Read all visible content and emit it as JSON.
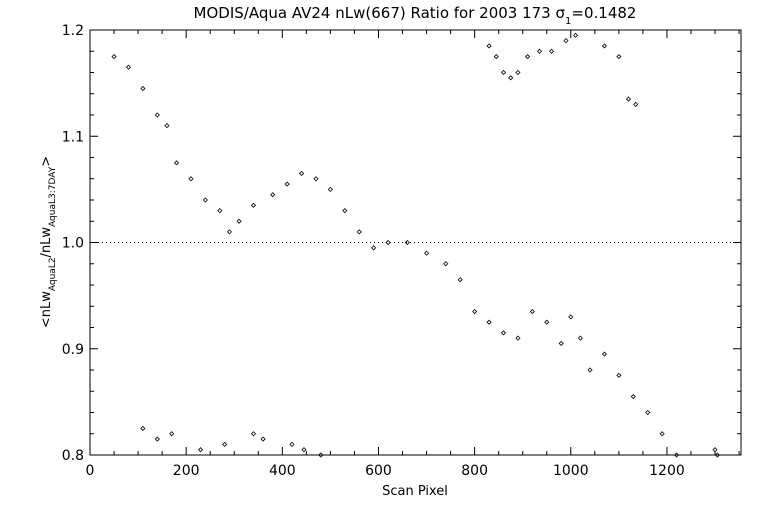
{
  "chart_data": {
    "type": "scatter",
    "title": "MODIS/Aqua AV24 nLw(667) Ratio for 2003 173 σ",
    "title_sub": "1",
    "title_tail": "=0.1482",
    "xlabel": "Scan Pixel",
    "ylabel_parts": [
      "<nLw",
      "AquaL2",
      "/nLw",
      "AquaL3:7DAY",
      ">"
    ],
    "xlim": [
      0,
      1354
    ],
    "ylim": [
      0.8,
      1.2
    ],
    "xticks": [
      0,
      200,
      400,
      600,
      800,
      1000,
      1200
    ],
    "xtick_labels": [
      "0",
      "200",
      "400",
      "600",
      "800",
      "1000",
      "1200"
    ],
    "yticks": [
      0.8,
      0.9,
      1.0,
      1.1,
      1.2
    ],
    "ytick_labels": [
      "0.8",
      "0.9",
      "1.0",
      "1.1",
      "1.2"
    ],
    "reference_line": {
      "y": 1.0,
      "style": "dotted"
    },
    "marker": "diamond",
    "grid": false,
    "trend_points": [
      [
        50,
        1.175
      ],
      [
        80,
        1.165
      ],
      [
        110,
        1.145
      ],
      [
        140,
        1.12
      ],
      [
        160,
        1.11
      ],
      [
        180,
        1.075
      ],
      [
        210,
        1.06
      ],
      [
        240,
        1.04
      ],
      [
        270,
        1.03
      ],
      [
        290,
        1.01
      ],
      [
        310,
        1.02
      ],
      [
        340,
        1.035
      ],
      [
        380,
        1.045
      ],
      [
        410,
        1.055
      ],
      [
        440,
        1.065
      ],
      [
        470,
        1.06
      ],
      [
        500,
        1.05
      ],
      [
        530,
        1.03
      ],
      [
        560,
        1.01
      ],
      [
        590,
        0.995
      ],
      [
        620,
        1.0
      ],
      [
        660,
        1.0
      ],
      [
        700,
        0.99
      ],
      [
        740,
        0.98
      ],
      [
        770,
        0.965
      ],
      [
        800,
        0.935
      ],
      [
        830,
        0.925
      ],
      [
        860,
        0.915
      ],
      [
        890,
        0.91
      ],
      [
        920,
        0.935
      ],
      [
        950,
        0.925
      ],
      [
        980,
        0.905
      ],
      [
        1000,
        0.93
      ],
      [
        1020,
        0.91
      ],
      [
        1040,
        0.88
      ],
      [
        1070,
        0.895
      ],
      [
        1100,
        0.875
      ],
      [
        1130,
        0.855
      ],
      [
        1160,
        0.84
      ],
      [
        1190,
        0.82
      ],
      [
        1220,
        0.8
      ]
    ],
    "outlier_points": [
      [
        830,
        1.185
      ],
      [
        845,
        1.175
      ],
      [
        860,
        1.16
      ],
      [
        875,
        1.155
      ],
      [
        890,
        1.16
      ],
      [
        910,
        1.175
      ],
      [
        935,
        1.18
      ],
      [
        960,
        1.18
      ],
      [
        990,
        1.19
      ],
      [
        1010,
        1.195
      ],
      [
        1070,
        1.185
      ],
      [
        1100,
        1.175
      ],
      [
        1120,
        1.135
      ],
      [
        1135,
        1.13
      ],
      [
        110,
        0.825
      ],
      [
        140,
        0.815
      ],
      [
        170,
        0.82
      ],
      [
        230,
        0.805
      ],
      [
        280,
        0.81
      ],
      [
        340,
        0.82
      ],
      [
        360,
        0.815
      ],
      [
        420,
        0.81
      ],
      [
        445,
        0.805
      ],
      [
        480,
        0.8
      ],
      [
        1300,
        0.805
      ],
      [
        1305,
        0.8
      ]
    ]
  }
}
